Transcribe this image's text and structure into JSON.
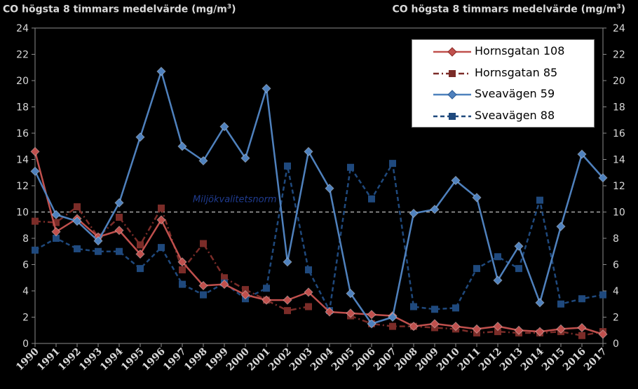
{
  "chart_data": {
    "type": "line",
    "ylabel_left": "CO högsta 8 timmars medelvärde (mg/m",
    "ylabel_right": "CO högsta 8 timmars medelvärde (mg/m",
    "ylabel_unit_sup": "3",
    "ylabel_close": ")",
    "ylim": [
      0,
      24
    ],
    "yticks": [
      "0",
      "2",
      "4",
      "6",
      "8",
      "10",
      "12",
      "14",
      "16",
      "18",
      "20",
      "22",
      "24"
    ],
    "x": [
      "1990",
      "1991",
      "1992",
      "1993",
      "1994",
      "1995",
      "1996",
      "1997",
      "1998",
      "1999",
      "2000",
      "2001",
      "2002",
      "2003",
      "2004",
      "2005",
      "2006",
      "2007",
      "2008",
      "2009",
      "2010",
      "2011",
      "2012",
      "2013",
      "2014",
      "2015",
      "2016",
      "2017"
    ],
    "reference_line": {
      "label": "Miljökvalitetsnorm",
      "value": 10,
      "color": "#1f3b8f"
    },
    "legend_position": "top-right",
    "series": [
      {
        "name": "Hornsgatan 108",
        "color": "#c0504d",
        "marker": "diamond",
        "dashed": false,
        "values": [
          14.6,
          8.5,
          9.5,
          8.1,
          8.6,
          6.8,
          9.4,
          6.2,
          4.4,
          4.5,
          3.7,
          3.3,
          3.3,
          3.9,
          2.4,
          2.3,
          2.2,
          2.1,
          1.3,
          1.5,
          1.3,
          1.1,
          1.3,
          1.0,
          0.9,
          1.1,
          1.2,
          0.7
        ]
      },
      {
        "name": "Hornsgatan 85",
        "color": "#7b2c28",
        "marker": "square",
        "dashed": true,
        "values": [
          9.3,
          9.2,
          10.4,
          8.1,
          9.6,
          7.5,
          10.3,
          5.6,
          7.6,
          5.0,
          4.1,
          3.3,
          2.5,
          2.8,
          null,
          2.1,
          1.5,
          1.3,
          1.3,
          1.2,
          1.1,
          0.8,
          0.9,
          0.8,
          0.8,
          0.9,
          0.6,
          0.9
        ]
      },
      {
        "name": "Sveavägen 59",
        "color": "#4f81bd",
        "marker": "diamond",
        "dashed": false,
        "values": [
          13.1,
          9.8,
          9.3,
          7.8,
          10.7,
          15.7,
          20.7,
          15.0,
          13.9,
          16.5,
          14.1,
          19.4,
          6.2,
          14.6,
          11.8,
          3.8,
          1.5,
          2.0,
          9.9,
          10.2,
          12.4,
          11.1,
          4.8,
          7.4,
          3.1,
          8.9,
          14.4,
          12.6
        ]
      },
      {
        "name": "Sveavägen 88",
        "color": "#1f497d",
        "marker": "square",
        "dashed": true,
        "values": [
          7.1,
          8.0,
          7.2,
          7.0,
          7.0,
          5.7,
          7.3,
          4.5,
          3.7,
          4.6,
          3.4,
          4.2,
          13.5,
          5.6,
          2.5,
          13.4,
          11.0,
          13.7,
          2.8,
          2.6,
          2.7,
          5.7,
          6.6,
          5.7,
          10.9,
          3.0,
          3.4,
          3.7
        ]
      }
    ]
  }
}
